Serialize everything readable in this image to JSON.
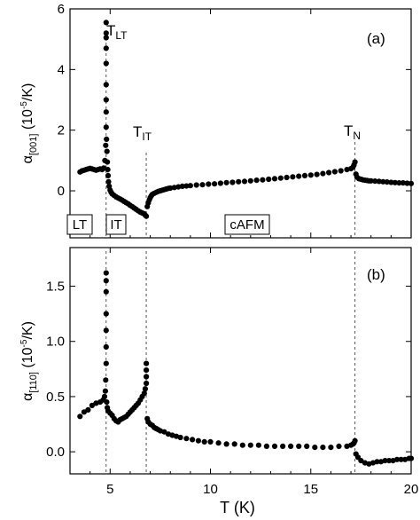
{
  "figure": {
    "x_axis_label": "T (K)",
    "x_ticks": [
      "5",
      "10",
      "15",
      "20"
    ]
  },
  "chart_data": [
    {
      "type": "scatter",
      "panel_label": "(a)",
      "ylabel_symbol": "α",
      "ylabel_sub": "[001]",
      "ylabel_units_pre": " (10",
      "ylabel_units_sup": "-5",
      "ylabel_units_post": "/K)",
      "xlabel": "T (K)",
      "xlim": [
        3,
        20
      ],
      "ylim": [
        -1.55,
        6.0
      ],
      "x_ticks": [
        5,
        10,
        15,
        20
      ],
      "y_ticks": [
        0,
        2,
        4,
        6
      ],
      "y_tick_labels": [
        "0",
        "2",
        "4",
        "6"
      ],
      "transitions": [
        {
          "base": "T",
          "sub": "LT",
          "x": 4.8
        },
        {
          "base": "T",
          "sub": "IT",
          "x": 6.8
        },
        {
          "base": "T",
          "sub": "N",
          "x": 17.2
        }
      ],
      "phase_labels": [
        {
          "text": "LT",
          "x": 3.7
        },
        {
          "text": "IT",
          "x": 5.6
        },
        {
          "text": "cAFM",
          "x": 12.1
        }
      ],
      "series": [
        {
          "x": [
            3.5,
            3.6,
            3.7,
            3.8,
            3.9,
            4.0,
            4.1,
            4.2,
            4.3,
            4.4,
            4.5,
            4.6,
            4.68,
            4.74,
            4.78,
            4.8,
            4.8,
            4.8,
            4.8,
            4.8,
            4.8,
            4.8,
            4.8,
            4.8,
            4.82,
            4.84,
            4.86,
            4.88,
            4.9,
            4.92,
            4.95,
            5.0,
            5.05,
            5.1,
            5.2,
            5.3,
            5.4,
            5.5,
            5.6,
            5.7,
            5.8,
            5.9,
            6.0,
            6.1,
            6.2,
            6.3,
            6.4,
            6.5,
            6.6,
            6.7,
            6.75,
            6.8,
            6.85,
            6.9,
            6.95,
            7.0,
            7.05,
            7.1,
            7.2,
            7.3,
            7.4,
            7.5,
            7.6,
            7.7,
            7.8,
            7.9,
            8.0,
            8.2,
            8.4,
            8.6,
            8.8,
            9.0,
            9.3,
            9.6,
            9.9,
            10.2,
            10.5,
            10.8,
            11.1,
            11.4,
            11.7,
            12.0,
            12.3,
            12.6,
            12.9,
            13.2,
            13.5,
            13.8,
            14.1,
            14.4,
            14.7,
            15.0,
            15.3,
            15.6,
            15.9,
            16.2,
            16.5,
            16.8,
            17.0,
            17.1,
            17.15,
            17.2,
            17.25,
            17.3,
            17.4,
            17.5,
            17.6,
            17.7,
            17.8,
            17.9,
            18.0,
            18.2,
            18.4,
            18.6,
            18.8,
            19.0,
            19.2,
            19.4,
            19.6,
            19.8,
            20.0
          ],
          "y": [
            0.62,
            0.66,
            0.68,
            0.7,
            0.72,
            0.74,
            0.72,
            0.7,
            0.68,
            0.7,
            0.72,
            0.7,
            0.75,
            1.0,
            1.5,
            2.1,
            2.6,
            3.0,
            3.5,
            4.2,
            4.7,
            5.05,
            5.2,
            5.55,
            1.7,
            1.3,
            0.95,
            0.7,
            0.5,
            0.3,
            0.15,
            0.02,
            -0.05,
            -0.1,
            -0.15,
            -0.2,
            -0.24,
            -0.27,
            -0.31,
            -0.35,
            -0.39,
            -0.43,
            -0.48,
            -0.52,
            -0.57,
            -0.61,
            -0.66,
            -0.7,
            -0.73,
            -0.76,
            -0.8,
            -0.84,
            -0.52,
            -0.4,
            -0.3,
            -0.22,
            -0.17,
            -0.12,
            -0.08,
            -0.05,
            -0.02,
            0.0,
            0.02,
            0.04,
            0.06,
            0.08,
            0.09,
            0.11,
            0.13,
            0.15,
            0.16,
            0.17,
            0.19,
            0.2,
            0.22,
            0.23,
            0.25,
            0.27,
            0.28,
            0.3,
            0.31,
            0.33,
            0.35,
            0.36,
            0.38,
            0.4,
            0.42,
            0.44,
            0.46,
            0.48,
            0.5,
            0.52,
            0.54,
            0.57,
            0.6,
            0.63,
            0.66,
            0.7,
            0.73,
            0.78,
            0.85,
            0.95,
            0.55,
            0.45,
            0.4,
            0.38,
            0.36,
            0.35,
            0.34,
            0.33,
            0.33,
            0.32,
            0.31,
            0.3,
            0.29,
            0.28,
            0.27,
            0.26,
            0.26,
            0.25,
            0.24
          ]
        }
      ]
    },
    {
      "type": "scatter",
      "panel_label": "(b)",
      "ylabel_symbol": "α",
      "ylabel_sub": "[110]",
      "ylabel_units_pre": " (10",
      "ylabel_units_sup": "-5",
      "ylabel_units_post": "/K)",
      "xlabel": "T (K)",
      "xlim": [
        3,
        20
      ],
      "ylim": [
        -0.2,
        1.85
      ],
      "x_ticks": [
        5,
        10,
        15,
        20
      ],
      "y_ticks": [
        0.0,
        0.5,
        1.0,
        1.5
      ],
      "y_tick_labels": [
        "0.0",
        "0.5",
        "1.0",
        "1.5"
      ],
      "transitions": [
        {
          "x": 4.8
        },
        {
          "x": 6.8
        },
        {
          "x": 17.2
        }
      ],
      "series": [
        {
          "x": [
            3.5,
            3.7,
            3.9,
            4.1,
            4.3,
            4.5,
            4.65,
            4.72,
            4.76,
            4.78,
            4.8,
            4.8,
            4.8,
            4.8,
            4.8,
            4.8,
            4.8,
            4.83,
            4.86,
            4.9,
            5.0,
            5.1,
            5.2,
            5.3,
            5.4,
            5.5,
            5.6,
            5.7,
            5.8,
            5.9,
            6.0,
            6.1,
            6.2,
            6.3,
            6.4,
            6.5,
            6.6,
            6.7,
            6.75,
            6.8,
            6.8,
            6.8,
            6.8,
            6.85,
            6.9,
            7.0,
            7.1,
            7.2,
            7.3,
            7.4,
            7.5,
            7.7,
            7.9,
            8.1,
            8.3,
            8.5,
            8.8,
            9.1,
            9.4,
            9.7,
            10.0,
            10.4,
            10.8,
            11.2,
            11.6,
            12.0,
            12.4,
            12.8,
            13.2,
            13.6,
            14.0,
            14.4,
            14.8,
            15.2,
            15.6,
            16.0,
            16.4,
            16.8,
            17.0,
            17.1,
            17.15,
            17.2,
            17.25,
            17.35,
            17.5,
            17.7,
            17.9,
            18.1,
            18.3,
            18.5,
            18.7,
            18.9,
            19.1,
            19.3,
            19.5,
            19.7,
            19.9,
            20.0
          ],
          "y": [
            0.32,
            0.36,
            0.38,
            0.42,
            0.44,
            0.45,
            0.47,
            0.5,
            0.55,
            0.65,
            0.8,
            0.95,
            1.1,
            1.25,
            1.45,
            1.55,
            1.62,
            0.45,
            0.4,
            0.37,
            0.35,
            0.33,
            0.3,
            0.28,
            0.27,
            0.29,
            0.3,
            0.31,
            0.32,
            0.34,
            0.36,
            0.38,
            0.4,
            0.42,
            0.44,
            0.47,
            0.5,
            0.53,
            0.57,
            0.62,
            0.68,
            0.74,
            0.8,
            0.3,
            0.27,
            0.25,
            0.24,
            0.22,
            0.21,
            0.2,
            0.19,
            0.18,
            0.16,
            0.15,
            0.14,
            0.13,
            0.12,
            0.11,
            0.1,
            0.09,
            0.09,
            0.08,
            0.07,
            0.07,
            0.06,
            0.06,
            0.06,
            0.05,
            0.05,
            0.05,
            0.05,
            0.05,
            0.05,
            0.04,
            0.04,
            0.04,
            0.05,
            0.05,
            0.06,
            0.07,
            0.08,
            0.1,
            -0.02,
            -0.05,
            -0.08,
            -0.1,
            -0.11,
            -0.1,
            -0.09,
            -0.09,
            -0.08,
            -0.08,
            -0.08,
            -0.07,
            -0.07,
            -0.07,
            -0.06,
            -0.06
          ]
        }
      ]
    }
  ]
}
